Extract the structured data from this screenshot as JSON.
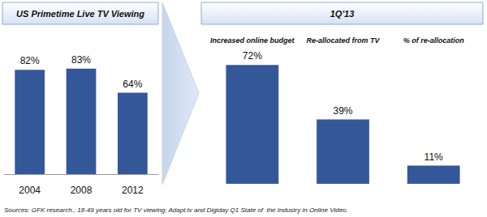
{
  "chart_data": [
    {
      "type": "bar",
      "title": "US Primetime Live TV Viewing",
      "categories": [
        "2004",
        "2008",
        "2012"
      ],
      "values": [
        82,
        83,
        64
      ],
      "value_labels": [
        "82%",
        "83%",
        "64%"
      ],
      "color": "#34579a",
      "ylim": [
        0,
        100
      ],
      "data_labels": true,
      "tick_labels": "x",
      "grid": false
    },
    {
      "type": "bar",
      "title": "1Q'13",
      "categories": [
        "Increased online budget",
        "Re-allocated from TV",
        "% of re-allocation"
      ],
      "values": [
        72,
        39,
        11
      ],
      "value_labels": [
        "72%",
        "39%",
        "11%"
      ],
      "color": "#34579a",
      "ylim": [
        0,
        80
      ],
      "data_labels": true,
      "tick_labels": "x",
      "grid": false
    }
  ],
  "source": "Sources: GFK research., 18-49 years old for TV viewing; Adapt.tv and Digiday Q1 State of  the Industry in Online Video."
}
